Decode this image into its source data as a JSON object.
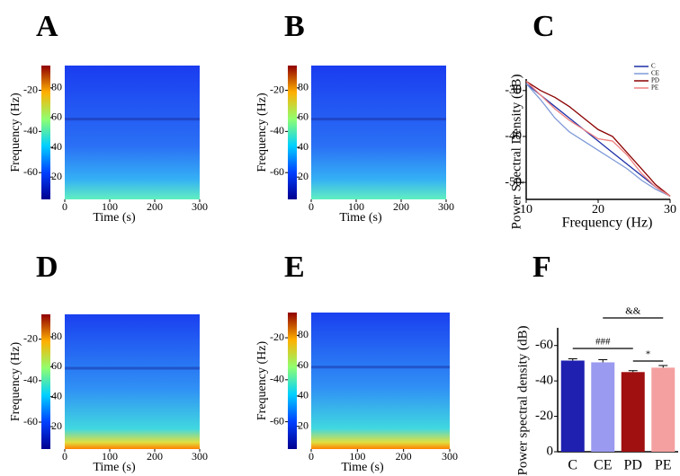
{
  "chart_data": [
    {
      "type": "heatmap",
      "panel": "A",
      "xlabel": "Time (s)",
      "ylabel": "Frequency (Hz)",
      "xlim": [
        0,
        300
      ],
      "xticks": [
        0,
        100,
        200,
        300
      ],
      "ylim": [
        -73,
        -8
      ],
      "yticks": [
        -20,
        -40,
        -60
      ],
      "clim": [
        5,
        95
      ],
      "cticks": [
        20,
        40,
        60,
        80
      ]
    },
    {
      "type": "heatmap",
      "panel": "B",
      "xlabel": "Time (s)",
      "ylabel": "Frequency (Hz)",
      "xlim": [
        0,
        300
      ],
      "xticks": [
        0,
        100,
        200,
        300
      ],
      "ylim": [
        -73,
        -8
      ],
      "yticks": [
        -20,
        -40,
        -60
      ],
      "clim": [
        5,
        95
      ],
      "cticks": [
        20,
        40,
        60,
        80
      ]
    },
    {
      "type": "line",
      "panel": "C",
      "xlabel": "Frequency (Hz)",
      "ylabel": "Power Spectral Density (dB)",
      "x": [
        10,
        12,
        14,
        16,
        18,
        20,
        22,
        24,
        26,
        28,
        30
      ],
      "xlim": [
        10,
        30
      ],
      "xticks": [
        10,
        20,
        30
      ],
      "ylim": [
        -53.7,
        -27.5
      ],
      "yticks": [
        -30,
        -40,
        -50
      ],
      "legend": "upper right",
      "series": [
        {
          "name": "C",
          "color": "#1c2fa6",
          "values": [
            -28.5,
            -31,
            -33.5,
            -36,
            -38.5,
            -41,
            -43.5,
            -46,
            -48.5,
            -51,
            -53
          ]
        },
        {
          "name": "CE",
          "color": "#7f9ad8",
          "values": [
            -28.5,
            -32,
            -36,
            -39,
            -41,
            -43,
            -45,
            -47,
            -49.5,
            -51.5,
            -53
          ]
        },
        {
          "name": "PD",
          "color": "#8b0000",
          "values": [
            -28,
            -30,
            -31.5,
            -33.5,
            -36,
            -38.5,
            -40,
            -43.5,
            -47,
            -50.5,
            -53
          ]
        },
        {
          "name": "PE",
          "color": "#f08080",
          "values": [
            -28,
            -31,
            -34,
            -36.5,
            -38.5,
            -40.5,
            -41,
            -44,
            -48,
            -51,
            -53
          ]
        }
      ]
    },
    {
      "type": "heatmap",
      "panel": "D",
      "xlabel": "Time (s)",
      "ylabel": "Frequency (Hz)",
      "xlim": [
        0,
        300
      ],
      "xticks": [
        0,
        100,
        200,
        300
      ],
      "ylim": [
        -73,
        -8
      ],
      "yticks": [
        -20,
        -40,
        -60
      ],
      "clim": [
        5,
        95
      ],
      "cticks": [
        20,
        40,
        60,
        80
      ]
    },
    {
      "type": "heatmap",
      "panel": "E",
      "xlabel": "Time (s)",
      "ylabel": "Frequency (Hz)",
      "xlim": [
        0,
        300
      ],
      "xticks": [
        0,
        100,
        200,
        300
      ],
      "ylim": [
        -73,
        -8
      ],
      "yticks": [
        -20,
        -40,
        -60
      ],
      "clim": [
        5,
        95
      ],
      "cticks": [
        20,
        40,
        60,
        80
      ]
    },
    {
      "type": "bar",
      "panel": "F",
      "ylabel": "Power spectral density (dB)",
      "categories": [
        "C",
        "CE",
        "PD",
        "PE"
      ],
      "values": [
        -51.5,
        -50.5,
        -45,
        -47.5
      ],
      "errors": [
        1,
        1.5,
        0.8,
        1.2
      ],
      "colors": [
        "#1f1fb0",
        "#9a9af0",
        "#a01010",
        "#f4a0a0"
      ],
      "ylim": [
        0,
        -70
      ],
      "yticks": [
        0,
        -20,
        -40,
        -60
      ],
      "annotations": [
        {
          "label": "###",
          "from": "C",
          "to": "PD"
        },
        {
          "label": "&&",
          "from": "CE",
          "to": "PE"
        },
        {
          "label": "*",
          "from": "PD",
          "to": "PE"
        }
      ]
    }
  ]
}
